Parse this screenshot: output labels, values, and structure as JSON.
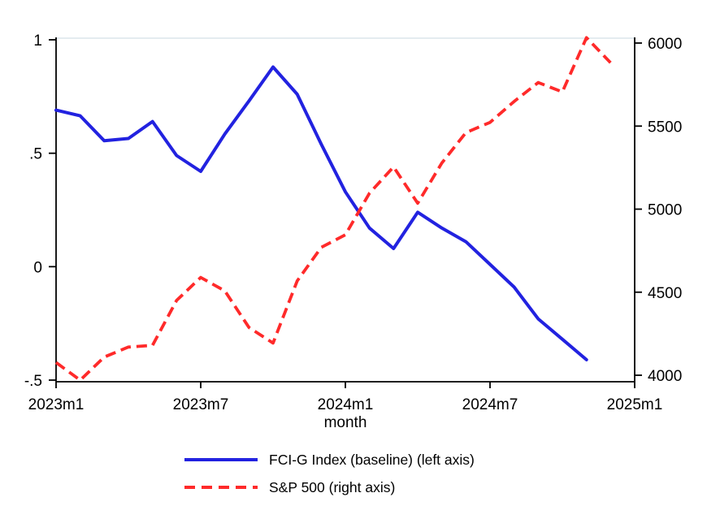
{
  "chart_data": {
    "type": "line",
    "title": "",
    "xlabel": "month",
    "grid": false,
    "background_color": "#ffffff",
    "frame_top_color": "#dce5eb",
    "axis_color": "#000000",
    "x_categories": [
      "2023m1",
      "2023m2",
      "2023m3",
      "2023m4",
      "2023m5",
      "2023m6",
      "2023m7",
      "2023m8",
      "2023m9",
      "2023m10",
      "2023m11",
      "2023m12",
      "2024m1",
      "2024m2",
      "2024m3",
      "2024m4",
      "2024m5",
      "2024m6",
      "2024m7",
      "2024m8",
      "2024m9",
      "2024m10",
      "2024m11",
      "2024m12"
    ],
    "x_axis": {
      "title": "month",
      "tick_labels": [
        "2023m1",
        "2023m7",
        "2024m1",
        "2024m7",
        "2025m1"
      ],
      "tick_month_index": [
        0,
        6,
        12,
        18,
        24
      ],
      "range_months": [
        0,
        24
      ]
    },
    "left_axis": {
      "tick_labels": [
        "1",
        ".5",
        "0",
        "-.5"
      ],
      "tick_values": [
        1,
        0.5,
        0,
        -0.5
      ],
      "range": [
        -0.5,
        1
      ]
    },
    "right_axis": {
      "tick_labels": [
        "4000",
        "4500",
        "5000",
        "5500",
        "6000"
      ],
      "tick_values": [
        4000,
        4500,
        5000,
        5500,
        6000
      ],
      "range": [
        4000,
        6000
      ]
    },
    "series": [
      {
        "name": "FCI-G Index (baseline) (left axis)",
        "axis": "left",
        "color": "#2222e0",
        "line_style": "solid",
        "line_width": 4,
        "values": [
          0.69,
          0.665,
          0.555,
          0.565,
          0.64,
          0.49,
          0.42,
          0.585,
          0.73,
          0.88,
          0.76,
          0.54,
          0.33,
          0.17,
          0.08,
          0.24,
          0.17,
          0.11,
          0.01,
          -0.09,
          -0.23,
          -0.32,
          -0.41,
          null
        ]
      },
      {
        "name": "S&P 500 (right axis)",
        "axis": "right",
        "color": "#ff2a2a",
        "line_style": "dashed",
        "line_width": 3.8,
        "values": [
          4076.6,
          3970.15,
          4109.31,
          4169.48,
          4179.83,
          4450.38,
          4588.96,
          4507.66,
          4288.05,
          4193.8,
          4567.8,
          4769.83,
          4845.65,
          5096.27,
          5254.35,
          5035.69,
          5277.51,
          5460.48,
          5522.3,
          5648.4,
          5762.48,
          5705.45,
          6032.38,
          5881.63
        ]
      }
    ],
    "legend": {
      "position": "bottom-center",
      "entries": [
        "FCI-G Index (baseline) (left axis)",
        "S&P 500 (right axis)"
      ]
    }
  }
}
